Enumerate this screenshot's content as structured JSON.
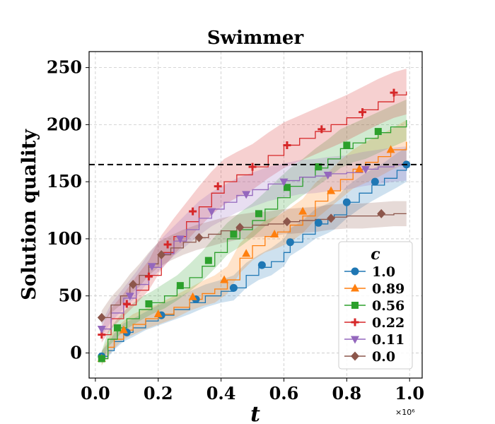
{
  "chart_data": {
    "type": "line",
    "title": "Swimmer",
    "xlabel": "t",
    "ylabel": "Solution quality",
    "x_offset_label": "×10⁶",
    "xlim": [
      -0.02,
      1.04
    ],
    "ylim": [
      -22,
      264
    ],
    "xticks": [
      0.0,
      0.2,
      0.4,
      0.6,
      0.8,
      1.0
    ],
    "xtick_labels": [
      "0.0",
      "0.2",
      "0.4",
      "0.6",
      "0.8",
      "1.0"
    ],
    "yticks": [
      0,
      50,
      100,
      150,
      200,
      250
    ],
    "ytick_labels": [
      "0",
      "50",
      "100",
      "150",
      "200",
      "250"
    ],
    "grid": true,
    "reference_line": {
      "y": 165,
      "style": "dashed",
      "color": "#000000"
    },
    "legend": {
      "title": "c",
      "position": "lower-right"
    },
    "series": [
      {
        "name": "1.0",
        "color": "#1f77b4",
        "marker": "circle",
        "x": [
          0.02,
          0.04,
          0.06,
          0.09,
          0.12,
          0.16,
          0.2,
          0.25,
          0.3,
          0.35,
          0.4,
          0.44,
          0.48,
          0.52,
          0.56,
          0.6,
          0.62,
          0.66,
          0.7,
          0.74,
          0.76,
          0.8,
          0.84,
          0.88,
          0.92,
          0.96,
          0.99
        ],
        "y": [
          -3,
          2,
          10,
          18,
          22,
          28,
          33,
          38,
          44,
          50,
          54,
          57,
          68,
          75,
          80,
          88,
          97,
          104,
          113,
          118,
          121,
          132,
          140,
          147,
          153,
          160,
          165
        ],
        "band": [
          5,
          6,
          7,
          8,
          8,
          8,
          9,
          9,
          10,
          10,
          10,
          11,
          11,
          11,
          12,
          12,
          12,
          12,
          13,
          13,
          13,
          14,
          14,
          14,
          14,
          15,
          15
        ],
        "markers_x": [
          0.02,
          0.1,
          0.21,
          0.32,
          0.44,
          0.53,
          0.62,
          0.71,
          0.8,
          0.89,
          0.99
        ],
        "markers_y": [
          -3,
          18,
          33,
          47,
          57,
          77,
          97,
          114,
          132,
          150,
          165
        ]
      },
      {
        "name": "0.89",
        "color": "#ff7f0e",
        "marker": "triangle-up",
        "x": [
          0.02,
          0.04,
          0.06,
          0.09,
          0.12,
          0.16,
          0.2,
          0.25,
          0.3,
          0.34,
          0.38,
          0.42,
          0.46,
          0.5,
          0.54,
          0.58,
          0.62,
          0.66,
          0.7,
          0.74,
          0.78,
          0.82,
          0.86,
          0.9,
          0.94,
          0.99
        ],
        "y": [
          -5,
          5,
          12,
          20,
          25,
          30,
          34,
          40,
          47,
          52,
          56,
          64,
          83,
          94,
          102,
          106,
          112,
          120,
          133,
          142,
          152,
          161,
          167,
          172,
          178,
          185
        ],
        "band": [
          6,
          7,
          8,
          8,
          9,
          9,
          9,
          10,
          10,
          11,
          12,
          12,
          13,
          13,
          14,
          14,
          15,
          15,
          16,
          16,
          17,
          17,
          18,
          18,
          18,
          19
        ],
        "markers_x": [
          0.02,
          0.09,
          0.2,
          0.31,
          0.41,
          0.48,
          0.57,
          0.66,
          0.75,
          0.84,
          0.94
        ],
        "markers_y": [
          -5,
          20,
          34,
          49,
          64,
          87,
          104,
          124,
          142,
          161,
          178
        ]
      },
      {
        "name": "0.56",
        "color": "#2ca02c",
        "marker": "square",
        "x": [
          0.02,
          0.04,
          0.07,
          0.1,
          0.14,
          0.18,
          0.22,
          0.26,
          0.3,
          0.34,
          0.38,
          0.42,
          0.46,
          0.5,
          0.54,
          0.58,
          0.62,
          0.66,
          0.7,
          0.74,
          0.78,
          0.82,
          0.86,
          0.9,
          0.94,
          0.99
        ],
        "y": [
          -5,
          12,
          22,
          30,
          38,
          44,
          50,
          57,
          66,
          76,
          88,
          100,
          108,
          116,
          126,
          136,
          146,
          154,
          162,
          170,
          179,
          184,
          188,
          193,
          198,
          204
        ],
        "band": [
          6,
          7,
          8,
          9,
          10,
          10,
          11,
          11,
          12,
          13,
          14,
          14,
          15,
          15,
          15,
          16,
          16,
          16,
          17,
          17,
          17,
          17,
          18,
          18,
          18,
          18
        ],
        "markers_x": [
          0.02,
          0.07,
          0.17,
          0.27,
          0.36,
          0.44,
          0.52,
          0.61,
          0.71,
          0.8,
          0.9
        ],
        "markers_y": [
          -5,
          22,
          43,
          59,
          81,
          104,
          122,
          145,
          163,
          182,
          194
        ]
      },
      {
        "name": "0.22",
        "color": "#d62728",
        "marker": "plus",
        "x": [
          0.02,
          0.05,
          0.09,
          0.13,
          0.17,
          0.21,
          0.25,
          0.29,
          0.33,
          0.37,
          0.41,
          0.45,
          0.5,
          0.55,
          0.6,
          0.65,
          0.7,
          0.75,
          0.8,
          0.85,
          0.9,
          0.95,
          0.99
        ],
        "y": [
          16,
          30,
          42,
          55,
          68,
          88,
          102,
          115,
          128,
          140,
          150,
          156,
          163,
          173,
          182,
          188,
          194,
          200,
          206,
          213,
          220,
          226,
          229
        ],
        "band": [
          7,
          9,
          10,
          12,
          13,
          15,
          16,
          17,
          18,
          19,
          20,
          20,
          20,
          20,
          20,
          20,
          20,
          20,
          20,
          20,
          20,
          20,
          20
        ],
        "markers_x": [
          0.02,
          0.1,
          0.17,
          0.23,
          0.31,
          0.39,
          0.5,
          0.61,
          0.72,
          0.85,
          0.95
        ],
        "markers_y": [
          16,
          43,
          67,
          95,
          124,
          146,
          163,
          182,
          196,
          211,
          228
        ]
      },
      {
        "name": "0.11",
        "color": "#9467bd",
        "marker": "triangle-down",
        "x": [
          0.02,
          0.05,
          0.09,
          0.13,
          0.17,
          0.21,
          0.25,
          0.29,
          0.33,
          0.37,
          0.41,
          0.45,
          0.5,
          0.55,
          0.6,
          0.65,
          0.7,
          0.75,
          0.8,
          0.85,
          0.9,
          0.95,
          0.99
        ],
        "y": [
          21,
          35,
          48,
          60,
          75,
          87,
          98,
          108,
          118,
          126,
          132,
          138,
          143,
          148,
          151,
          154,
          155,
          157,
          158,
          161,
          163,
          165,
          166
        ],
        "band": [
          6,
          8,
          9,
          11,
          12,
          13,
          13,
          14,
          15,
          15,
          15,
          15,
          15,
          15,
          15,
          15,
          15,
          15,
          15,
          15,
          15,
          15,
          15
        ],
        "markers_x": [
          0.02,
          0.11,
          0.18,
          0.27,
          0.37,
          0.48,
          0.6,
          0.74,
          0.86
        ],
        "markers_y": [
          21,
          50,
          76,
          100,
          124,
          139,
          150,
          156,
          161
        ]
      },
      {
        "name": "0.0",
        "color": "#8c564b",
        "marker": "diamond",
        "x": [
          0.02,
          0.05,
          0.08,
          0.11,
          0.14,
          0.17,
          0.2,
          0.24,
          0.28,
          0.32,
          0.36,
          0.4,
          0.45,
          0.5,
          0.55,
          0.6,
          0.65,
          0.7,
          0.75,
          0.8,
          0.85,
          0.9,
          0.95,
          0.99
        ],
        "y": [
          31,
          42,
          50,
          60,
          68,
          78,
          86,
          92,
          97,
          101,
          104,
          107,
          110,
          112,
          113,
          115,
          116,
          117,
          119,
          120,
          120,
          121,
          122,
          122
        ],
        "band": [
          6,
          7,
          8,
          9,
          10,
          10,
          11,
          11,
          11,
          11,
          11,
          11,
          11,
          11,
          11,
          11,
          11,
          11,
          11,
          11,
          11,
          11,
          11,
          11
        ],
        "markers_x": [
          0.02,
          0.12,
          0.21,
          0.33,
          0.46,
          0.61,
          0.75,
          0.91
        ],
        "markers_y": [
          31,
          60,
          86,
          101,
          110,
          115,
          118,
          122
        ]
      }
    ]
  }
}
